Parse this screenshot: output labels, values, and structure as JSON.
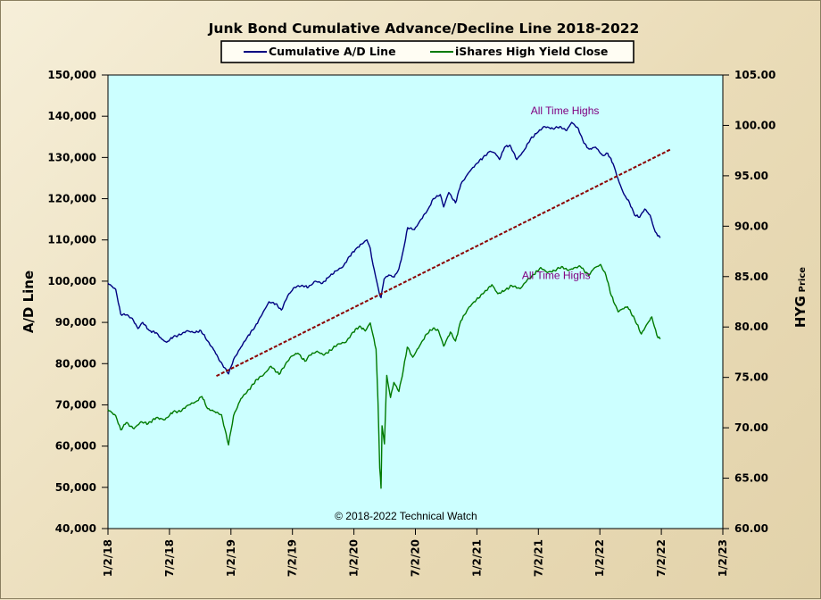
{
  "chart_data": {
    "type": "line",
    "title": "Junk Bond Cumulative  Advance/Decline Line 2018-2022",
    "ylabel": "A/D Line",
    "y2label": "HYG",
    "y2label_suffix": "Price",
    "ylim": [
      40000,
      150000
    ],
    "y2lim": [
      60,
      105
    ],
    "xlim": [
      "2018-01-02",
      "2023-01-02"
    ],
    "x_ticks": [
      "1/2/18",
      "7/2/18",
      "1/2/19",
      "7/2/19",
      "1/2/20",
      "7/2/20",
      "1/2/21",
      "7/2/21",
      "1/2/22",
      "7/2/22",
      "1/2/23"
    ],
    "y_ticks": [
      "40,000",
      "50,000",
      "60,000",
      "70,000",
      "80,000",
      "90,000",
      "100,000",
      "110,000",
      "120,000",
      "130,000",
      "140,000",
      "150,000"
    ],
    "y2_ticks": [
      "60.00",
      "65.00",
      "70.00",
      "75.00",
      "80.00",
      "85.00",
      "90.00",
      "95.00",
      "100.00",
      "105.00"
    ],
    "plot_background": "#ccffff",
    "legend_position": "top",
    "series": [
      {
        "name": "Cumulative A/D Line",
        "axis": "left",
        "color": "#000080",
        "points": [
          [
            "2018-01-02",
            99500
          ],
          [
            "2018-01-25",
            98000
          ],
          [
            "2018-02-09",
            92000
          ],
          [
            "2018-02-25",
            91800
          ],
          [
            "2018-03-15",
            91000
          ],
          [
            "2018-04-01",
            88500
          ],
          [
            "2018-04-15",
            90000
          ],
          [
            "2018-05-05",
            88000
          ],
          [
            "2018-05-25",
            87500
          ],
          [
            "2018-06-10",
            86000
          ],
          [
            "2018-06-25",
            85200
          ],
          [
            "2018-07-15",
            86500
          ],
          [
            "2018-08-05",
            87000
          ],
          [
            "2018-08-25",
            88000
          ],
          [
            "2018-09-15",
            87500
          ],
          [
            "2018-10-05",
            88000
          ],
          [
            "2018-10-25",
            85500
          ],
          [
            "2018-11-15",
            83000
          ],
          [
            "2018-12-01",
            80500
          ],
          [
            "2018-12-15",
            79000
          ],
          [
            "2018-12-26",
            77500
          ],
          [
            "2019-01-10",
            81000
          ],
          [
            "2019-02-01",
            84000
          ],
          [
            "2019-02-20",
            86500
          ],
          [
            "2019-03-15",
            89000
          ],
          [
            "2019-04-05",
            92000
          ],
          [
            "2019-04-25",
            95000
          ],
          [
            "2019-05-15",
            94500
          ],
          [
            "2019-06-01",
            93000
          ],
          [
            "2019-06-20",
            96500
          ],
          [
            "2019-07-10",
            98500
          ],
          [
            "2019-08-01",
            99000
          ],
          [
            "2019-08-20",
            98500
          ],
          [
            "2019-09-10",
            100000
          ],
          [
            "2019-10-01",
            99500
          ],
          [
            "2019-10-20",
            101000
          ],
          [
            "2019-11-10",
            102500
          ],
          [
            "2019-12-01",
            103500
          ],
          [
            "2019-12-20",
            106000
          ],
          [
            "2020-01-10",
            108000
          ],
          [
            "2020-01-25",
            109000
          ],
          [
            "2020-02-10",
            110000
          ],
          [
            "2020-02-20",
            108000
          ],
          [
            "2020-02-28",
            104000
          ],
          [
            "2020-03-10",
            100000
          ],
          [
            "2020-03-18",
            97000
          ],
          [
            "2020-03-23",
            96000
          ],
          [
            "2020-04-01",
            100500
          ],
          [
            "2020-04-15",
            101500
          ],
          [
            "2020-05-01",
            101000
          ],
          [
            "2020-05-15",
            103000
          ],
          [
            "2020-05-28",
            107500
          ],
          [
            "2020-06-10",
            113000
          ],
          [
            "2020-06-30",
            112500
          ],
          [
            "2020-07-20",
            115000
          ],
          [
            "2020-08-10",
            117500
          ],
          [
            "2020-08-25",
            120000
          ],
          [
            "2020-09-15",
            121000
          ],
          [
            "2020-09-25",
            118000
          ],
          [
            "2020-10-10",
            121500
          ],
          [
            "2020-10-30",
            119000
          ],
          [
            "2020-11-15",
            123500
          ],
          [
            "2020-12-10",
            126500
          ],
          [
            "2020-12-31",
            128500
          ],
          [
            "2021-01-20",
            130000
          ],
          [
            "2021-02-10",
            131500
          ],
          [
            "2021-02-25",
            131000
          ],
          [
            "2021-03-10",
            129500
          ],
          [
            "2021-03-25",
            132500
          ],
          [
            "2021-04-10",
            133000
          ],
          [
            "2021-04-30",
            129500
          ],
          [
            "2021-05-20",
            131500
          ],
          [
            "2021-06-10",
            134500
          ],
          [
            "2021-06-30",
            136000
          ],
          [
            "2021-07-20",
            137500
          ],
          [
            "2021-08-15",
            137000
          ],
          [
            "2021-09-05",
            137500
          ],
          [
            "2021-09-25",
            136500
          ],
          [
            "2021-10-10",
            138500
          ],
          [
            "2021-10-30",
            137000
          ],
          [
            "2021-11-15",
            133500
          ],
          [
            "2021-12-01",
            132000
          ],
          [
            "2021-12-20",
            132500
          ],
          [
            "2022-01-10",
            130500
          ],
          [
            "2022-01-25",
            131000
          ],
          [
            "2022-02-10",
            128500
          ],
          [
            "2022-02-28",
            124000
          ],
          [
            "2022-03-15",
            121000
          ],
          [
            "2022-03-31",
            119000
          ],
          [
            "2022-04-15",
            116000
          ],
          [
            "2022-04-30",
            115500
          ],
          [
            "2022-05-15",
            117500
          ],
          [
            "2022-05-31",
            116000
          ],
          [
            "2022-06-15",
            112000
          ],
          [
            "2022-06-30",
            110500
          ]
        ]
      },
      {
        "name": "iShares High Yield Close",
        "axis": "right",
        "color": "#007a00",
        "points": [
          [
            "2018-01-02",
            71.8
          ],
          [
            "2018-01-25",
            71.2
          ],
          [
            "2018-02-09",
            69.8
          ],
          [
            "2018-02-25",
            70.5
          ],
          [
            "2018-03-20",
            69.9
          ],
          [
            "2018-04-10",
            70.6
          ],
          [
            "2018-05-01",
            70.4
          ],
          [
            "2018-05-25",
            71.0
          ],
          [
            "2018-06-20",
            70.8
          ],
          [
            "2018-07-15",
            71.6
          ],
          [
            "2018-08-05",
            71.6
          ],
          [
            "2018-08-25",
            72.2
          ],
          [
            "2018-09-20",
            72.6
          ],
          [
            "2018-10-08",
            73.1
          ],
          [
            "2018-10-25",
            71.9
          ],
          [
            "2018-11-15",
            71.6
          ],
          [
            "2018-12-05",
            71.3
          ],
          [
            "2018-12-15",
            69.9
          ],
          [
            "2018-12-26",
            68.3
          ],
          [
            "2019-01-10",
            71.2
          ],
          [
            "2019-02-01",
            72.9
          ],
          [
            "2019-02-25",
            73.8
          ],
          [
            "2019-03-20",
            74.8
          ],
          [
            "2019-04-10",
            75.3
          ],
          [
            "2019-05-01",
            76.1
          ],
          [
            "2019-05-25",
            75.3
          ],
          [
            "2019-06-05",
            75.9
          ],
          [
            "2019-06-30",
            77.1
          ],
          [
            "2019-07-20",
            77.4
          ],
          [
            "2019-08-10",
            76.6
          ],
          [
            "2019-08-25",
            77.2
          ],
          [
            "2019-09-15",
            77.6
          ],
          [
            "2019-10-05",
            77.2
          ],
          [
            "2019-10-25",
            77.7
          ],
          [
            "2019-11-15",
            78.3
          ],
          [
            "2019-12-10",
            78.5
          ],
          [
            "2019-12-31",
            79.5
          ],
          [
            "2020-01-20",
            80.1
          ],
          [
            "2020-02-05",
            79.6
          ],
          [
            "2020-02-20",
            80.4
          ],
          [
            "2020-02-28",
            79.2
          ],
          [
            "2020-03-08",
            77.8
          ],
          [
            "2020-03-14",
            72.5
          ],
          [
            "2020-03-19",
            66.0
          ],
          [
            "2020-03-23",
            64.0
          ],
          [
            "2020-03-26",
            70.2
          ],
          [
            "2020-04-02",
            68.4
          ],
          [
            "2020-04-09",
            75.2
          ],
          [
            "2020-04-20",
            73.0
          ],
          [
            "2020-04-30",
            74.5
          ],
          [
            "2020-05-15",
            73.6
          ],
          [
            "2020-05-28",
            75.7
          ],
          [
            "2020-06-09",
            78.0
          ],
          [
            "2020-06-25",
            77.0
          ],
          [
            "2020-07-15",
            78.1
          ],
          [
            "2020-08-05",
            79.3
          ],
          [
            "2020-08-25",
            79.9
          ],
          [
            "2020-09-10",
            79.6
          ],
          [
            "2020-09-25",
            78.1
          ],
          [
            "2020-10-15",
            79.5
          ],
          [
            "2020-10-30",
            78.6
          ],
          [
            "2020-11-15",
            80.6
          ],
          [
            "2020-12-10",
            82.0
          ],
          [
            "2020-12-31",
            82.7
          ],
          [
            "2021-01-20",
            83.3
          ],
          [
            "2021-02-15",
            84.2
          ],
          [
            "2021-03-05",
            83.3
          ],
          [
            "2021-03-25",
            83.6
          ],
          [
            "2021-04-15",
            84.1
          ],
          [
            "2021-05-10",
            83.8
          ],
          [
            "2021-05-30",
            84.6
          ],
          [
            "2021-06-20",
            85.2
          ],
          [
            "2021-07-10",
            85.9
          ],
          [
            "2021-07-30",
            85.4
          ],
          [
            "2021-08-20",
            85.6
          ],
          [
            "2021-09-10",
            86.0
          ],
          [
            "2021-09-30",
            85.6
          ],
          [
            "2021-10-20",
            85.9
          ],
          [
            "2021-11-05",
            86.0
          ],
          [
            "2021-11-30",
            85.1
          ],
          [
            "2021-12-15",
            85.8
          ],
          [
            "2022-01-04",
            86.2
          ],
          [
            "2022-01-20",
            85.1
          ],
          [
            "2022-02-05",
            83.1
          ],
          [
            "2022-02-25",
            81.5
          ],
          [
            "2022-03-10",
            81.8
          ],
          [
            "2022-03-25",
            82.0
          ],
          [
            "2022-04-15",
            80.8
          ],
          [
            "2022-05-05",
            79.3
          ],
          [
            "2022-05-20",
            80.2
          ],
          [
            "2022-06-05",
            81.0
          ],
          [
            "2022-06-20",
            79.2
          ],
          [
            "2022-06-30",
            78.8
          ]
        ]
      }
    ],
    "trendline": {
      "color": "#8b0000",
      "style": "dashed",
      "axis": "left",
      "points": [
        [
          "2018-11-20",
          77000
        ],
        [
          "2022-08-01",
          132000
        ]
      ]
    },
    "annotations": [
      {
        "text": "All Time Highs",
        "anchor": [
          "2021-09-20",
          140500
        ]
      },
      {
        "text": "All Time Highs",
        "anchor": [
          "2021-08-25",
          100500
        ]
      },
      {
        "text": "© 2018-2022  Technical Watch",
        "anchor": [
          "2020-06-05",
          42200
        ]
      }
    ]
  }
}
